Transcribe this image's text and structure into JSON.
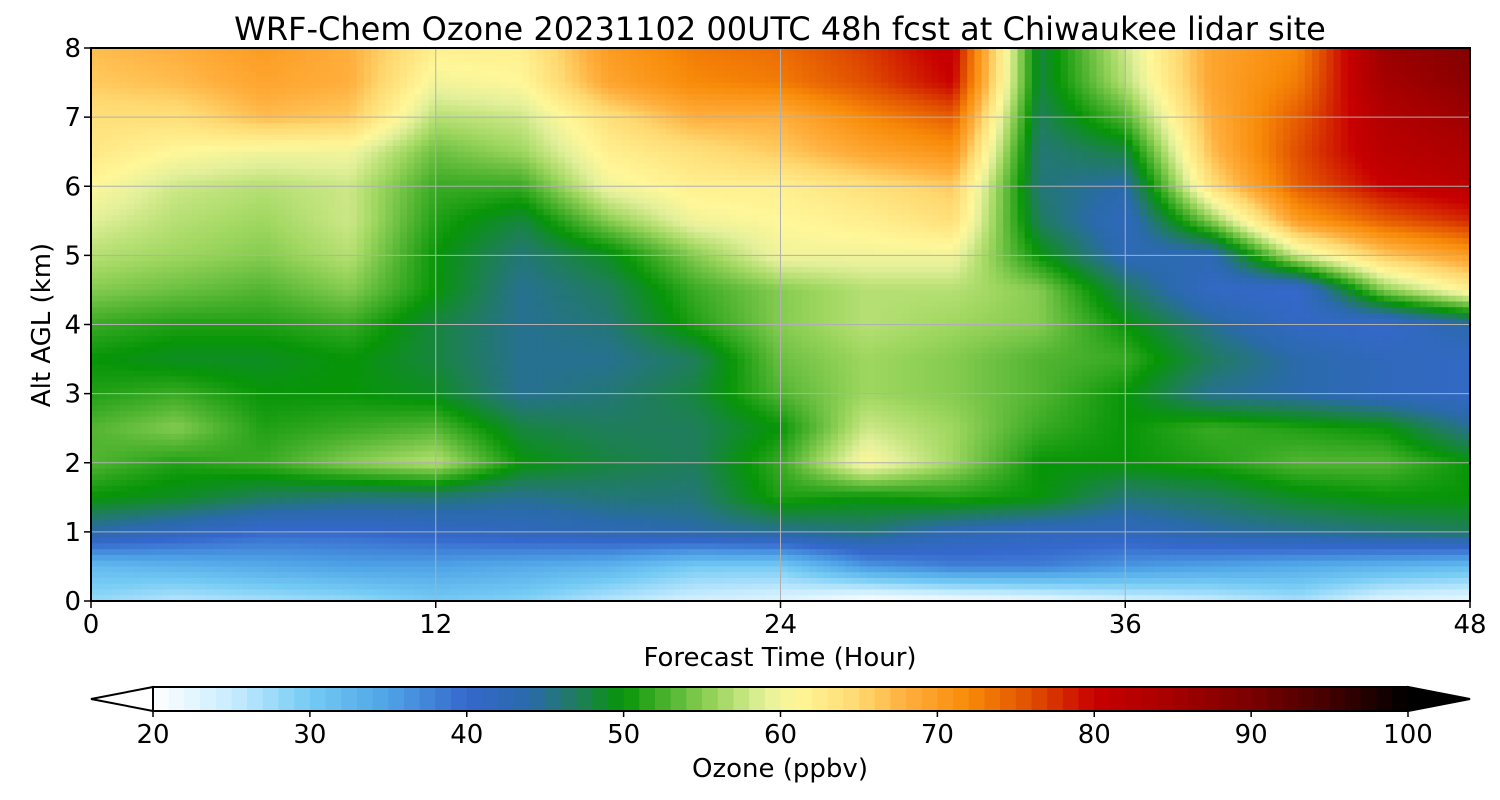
{
  "chart_data": {
    "type": "heatmap",
    "title": "WRF-Chem Ozone  20231102 00UTC 48h fcst at Chiwaukee lidar site",
    "xlabel": "Forecast Time (Hour)",
    "ylabel": "Alt AGL (km)",
    "xlim": [
      0,
      48
    ],
    "ylim": [
      0,
      8
    ],
    "xticks": [
      0,
      12,
      24,
      36,
      48
    ],
    "yticks": [
      0,
      1,
      2,
      3,
      4,
      5,
      6,
      7,
      8
    ],
    "grid": true,
    "colorbar": {
      "label": "Ozone  (ppbv)",
      "min": 20,
      "max": 100,
      "ticks": [
        20,
        30,
        40,
        50,
        60,
        70,
        80,
        90,
        100
      ],
      "extend": "both",
      "stops": [
        {
          "v": 20,
          "c": "#ffffff"
        },
        {
          "v": 25,
          "c": "#c8ecff"
        },
        {
          "v": 30,
          "c": "#74cbf4"
        },
        {
          "v": 35,
          "c": "#4ea3e6"
        },
        {
          "v": 40,
          "c": "#3568cc"
        },
        {
          "v": 44,
          "c": "#2a6aab"
        },
        {
          "v": 47,
          "c": "#1f7d5c"
        },
        {
          "v": 50,
          "c": "#079507"
        },
        {
          "v": 53,
          "c": "#52b532"
        },
        {
          "v": 56,
          "c": "#9fd760"
        },
        {
          "v": 59,
          "c": "#e3f09a"
        },
        {
          "v": 61,
          "c": "#fff799"
        },
        {
          "v": 65,
          "c": "#ffd870"
        },
        {
          "v": 68,
          "c": "#ffae3c"
        },
        {
          "v": 72,
          "c": "#f88a08"
        },
        {
          "v": 76,
          "c": "#e04e00"
        },
        {
          "v": 80,
          "c": "#c80000"
        },
        {
          "v": 85,
          "c": "#a50000"
        },
        {
          "v": 90,
          "c": "#7a0000"
        },
        {
          "v": 95,
          "c": "#420000"
        },
        {
          "v": 100,
          "c": "#000000"
        }
      ]
    },
    "x": [
      0,
      3,
      6,
      9,
      12,
      15,
      18,
      21,
      24,
      27,
      30,
      33,
      36,
      39,
      42,
      45,
      48
    ],
    "y": [
      0,
      0.5,
      1,
      1.5,
      2,
      2.5,
      3,
      3.5,
      4,
      4.5,
      5,
      5.5,
      6,
      6.5,
      7,
      7.5,
      8
    ],
    "z": [
      [
        28,
        26,
        27,
        28,
        30,
        29,
        26,
        24,
        23,
        20,
        21,
        22,
        24,
        25,
        27,
        23,
        22
      ],
      [
        32,
        33,
        34,
        35,
        35,
        34,
        33,
        30,
        30,
        36,
        38,
        38,
        36,
        35,
        34,
        33,
        32
      ],
      [
        44,
        42,
        40,
        40,
        41,
        42,
        43,
        44,
        45,
        46,
        43,
        42,
        42,
        44,
        45,
        46,
        47
      ],
      [
        50,
        49,
        47,
        46,
        46,
        45,
        46,
        46,
        51,
        50,
        51,
        50,
        46,
        47,
        49,
        50,
        50
      ],
      [
        53,
        51,
        52,
        55,
        57,
        50,
        48,
        47,
        52,
        61,
        56,
        50,
        50,
        51,
        53,
        53,
        50
      ],
      [
        53,
        55,
        51,
        52,
        53,
        48,
        47,
        47,
        50,
        58,
        56,
        52,
        50,
        52,
        51,
        50,
        45
      ],
      [
        51,
        52,
        50,
        50,
        49,
        45,
        46,
        48,
        53,
        56,
        55,
        53,
        50,
        45,
        44,
        42,
        41
      ],
      [
        50,
        49,
        49,
        50,
        48,
        45,
        45,
        47,
        54,
        56,
        55,
        53,
        52,
        47,
        44,
        42,
        41
      ],
      [
        52,
        51,
        51,
        52,
        48,
        45,
        46,
        51,
        55,
        57,
        56,
        55,
        50,
        45,
        41,
        40,
        44
      ],
      [
        55,
        54,
        53,
        55,
        50,
        45,
        47,
        52,
        55,
        57,
        57,
        55,
        47,
        41,
        40,
        55,
        62
      ],
      [
        57,
        56,
        55,
        57,
        50,
        46,
        49,
        55,
        60,
        60,
        60,
        50,
        43,
        43,
        58,
        66,
        70
      ],
      [
        59,
        57,
        56,
        58,
        51,
        48,
        55,
        60,
        61,
        62,
        64,
        47,
        42,
        55,
        70,
        75,
        78
      ],
      [
        61,
        58,
        57,
        58,
        52,
        52,
        60,
        62,
        62,
        64,
        66,
        46,
        44,
        64,
        75,
        80,
        82
      ],
      [
        63,
        61,
        60,
        60,
        54,
        56,
        62,
        64,
        66,
        69,
        71,
        46,
        48,
        67,
        76,
        82,
        84
      ],
      [
        64,
        64,
        67,
        66,
        57,
        58,
        64,
        68,
        68,
        72,
        75,
        47,
        53,
        68,
        75,
        83,
        86
      ],
      [
        66,
        67,
        69,
        68,
        60,
        61,
        69,
        72,
        73,
        76,
        80,
        48,
        57,
        69,
        73,
        85,
        88
      ],
      [
        67,
        68,
        70,
        68,
        62,
        62,
        70,
        73,
        74,
        77,
        81,
        48,
        58,
        69,
        72,
        86,
        89
      ]
    ]
  }
}
